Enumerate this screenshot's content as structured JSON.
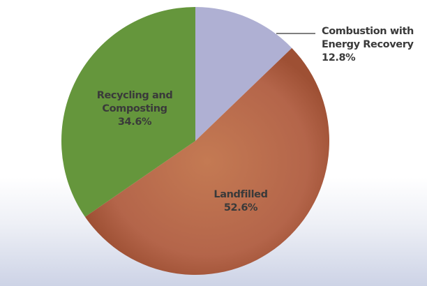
{
  "chart_data": {
    "type": "pie",
    "title": "",
    "categories": [
      "Combustion with Energy Recovery",
      "Landfilled",
      "Recycling and Composting"
    ],
    "values": [
      12.8,
      52.6,
      34.6
    ],
    "unit": "%",
    "colors": [
      "#afb0d3",
      "#b8674a",
      "#65963c"
    ],
    "start_angle_deg": 0,
    "direction": "clockwise",
    "labels": [
      {
        "line1": "Combustion with",
        "line2": "Energy Recovery",
        "value": "12.8%"
      },
      {
        "line1": "Landfilled",
        "value": "52.6%"
      },
      {
        "line1": "Recycling and",
        "line2": "Composting",
        "value": "34.6%"
      }
    ]
  }
}
